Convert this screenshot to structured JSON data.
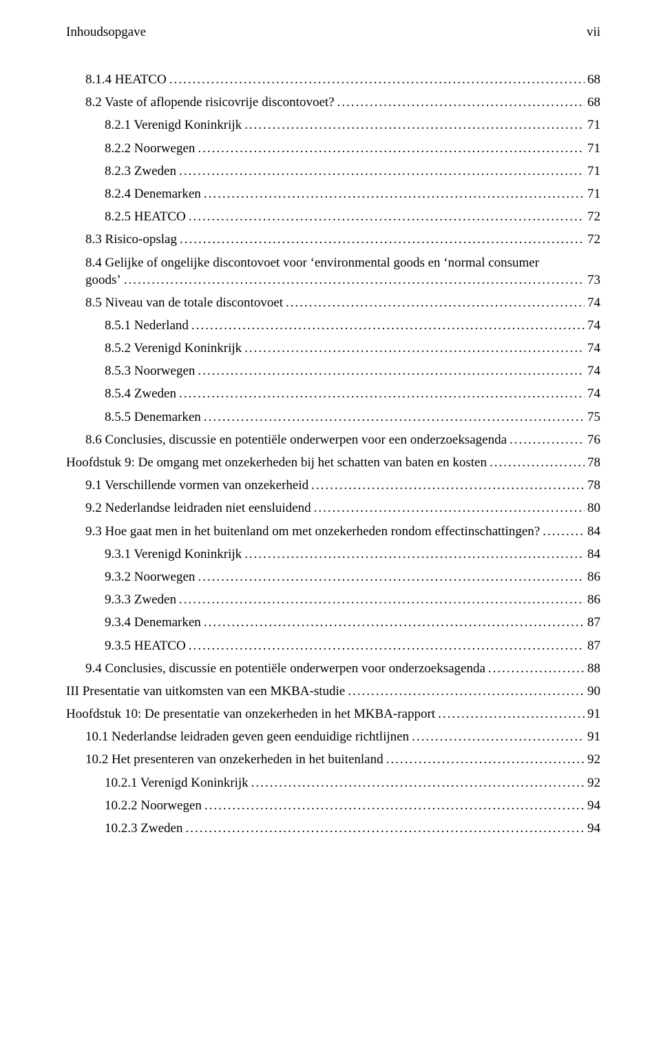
{
  "header": {
    "left": "Inhoudsopgave",
    "right": "vii"
  },
  "font": {
    "family": "Times New Roman",
    "size_pt": 14
  },
  "colors": {
    "text": "#000000",
    "background": "#ffffff"
  },
  "entries": [
    {
      "indent": 1,
      "label": "8.1.4 HEATCO",
      "page": "68"
    },
    {
      "indent": 1,
      "label": "8.2 Vaste of aflopende risicovrije discontovoet?",
      "page": "68"
    },
    {
      "indent": 2,
      "label": "8.2.1 Verenigd Koninkrijk",
      "page": "71"
    },
    {
      "indent": 2,
      "label": "8.2.2 Noorwegen",
      "page": "71"
    },
    {
      "indent": 2,
      "label": "8.2.3 Zweden",
      "page": "71"
    },
    {
      "indent": 2,
      "label": "8.2.4 Denemarken",
      "page": "71"
    },
    {
      "indent": 2,
      "label": "8.2.5 HEATCO",
      "page": "72"
    },
    {
      "indent": 1,
      "label": "8.3 Risico-opslag",
      "page": "72"
    },
    {
      "indent": 1,
      "label": "8.4 Gelijke of ongelijke discontovoet voor ‘environmental goods en ‘normal consumer goods’",
      "page": "73",
      "wrap": true
    },
    {
      "indent": 1,
      "label": "8.5 Niveau van de totale discontovoet",
      "page": "74"
    },
    {
      "indent": 2,
      "label": "8.5.1 Nederland",
      "page": "74"
    },
    {
      "indent": 2,
      "label": "8.5.2 Verenigd Koninkrijk",
      "page": "74"
    },
    {
      "indent": 2,
      "label": "8.5.3 Noorwegen",
      "page": "74"
    },
    {
      "indent": 2,
      "label": "8.5.4 Zweden",
      "page": "74"
    },
    {
      "indent": 2,
      "label": "8.5.5 Denemarken",
      "page": "75"
    },
    {
      "indent": 1,
      "label": "8.6 Conclusies, discussie en potentiële onderwerpen voor een onderzoeksagenda",
      "page": "76"
    },
    {
      "indent": 0,
      "label": "Hoofdstuk 9: De omgang met onzekerheden bij het schatten van baten en kosten",
      "page": "78"
    },
    {
      "indent": 1,
      "label": "9.1 Verschillende vormen van onzekerheid",
      "page": "78"
    },
    {
      "indent": 1,
      "label": "9.2 Nederlandse leidraden niet eensluidend",
      "page": "80"
    },
    {
      "indent": 1,
      "label": "9.3 Hoe gaat men in het buitenland om met onzekerheden rondom effectinschattingen?",
      "page": "84"
    },
    {
      "indent": 2,
      "label": "9.3.1 Verenigd Koninkrijk",
      "page": "84"
    },
    {
      "indent": 2,
      "label": "9.3.2 Noorwegen",
      "page": "86"
    },
    {
      "indent": 2,
      "label": "9.3.3 Zweden",
      "page": "86"
    },
    {
      "indent": 2,
      "label": "9.3.4 Denemarken",
      "page": "87"
    },
    {
      "indent": 2,
      "label": "9.3.5 HEATCO",
      "page": "87"
    },
    {
      "indent": 1,
      "label": "9.4 Conclusies, discussie en potentiële onderwerpen voor onderzoeksagenda",
      "page": "88"
    },
    {
      "indent": 0,
      "label": "III Presentatie van uitkomsten van een MKBA-studie",
      "page": "90"
    },
    {
      "indent": 0,
      "label": "Hoofdstuk 10: De presentatie van onzekerheden in het MKBA-rapport",
      "page": "91"
    },
    {
      "indent": 1,
      "label": "10.1 Nederlandse leidraden geven geen eenduidige richtlijnen",
      "page": "91"
    },
    {
      "indent": 1,
      "label": "10.2 Het presenteren van onzekerheden in het buitenland",
      "page": "92"
    },
    {
      "indent": 2,
      "label": "10.2.1 Verenigd Koninkrijk",
      "page": "92"
    },
    {
      "indent": 2,
      "label": "10.2.2 Noorwegen",
      "page": "94"
    },
    {
      "indent": 2,
      "label": "10.2.3 Zweden",
      "page": "94"
    }
  ]
}
